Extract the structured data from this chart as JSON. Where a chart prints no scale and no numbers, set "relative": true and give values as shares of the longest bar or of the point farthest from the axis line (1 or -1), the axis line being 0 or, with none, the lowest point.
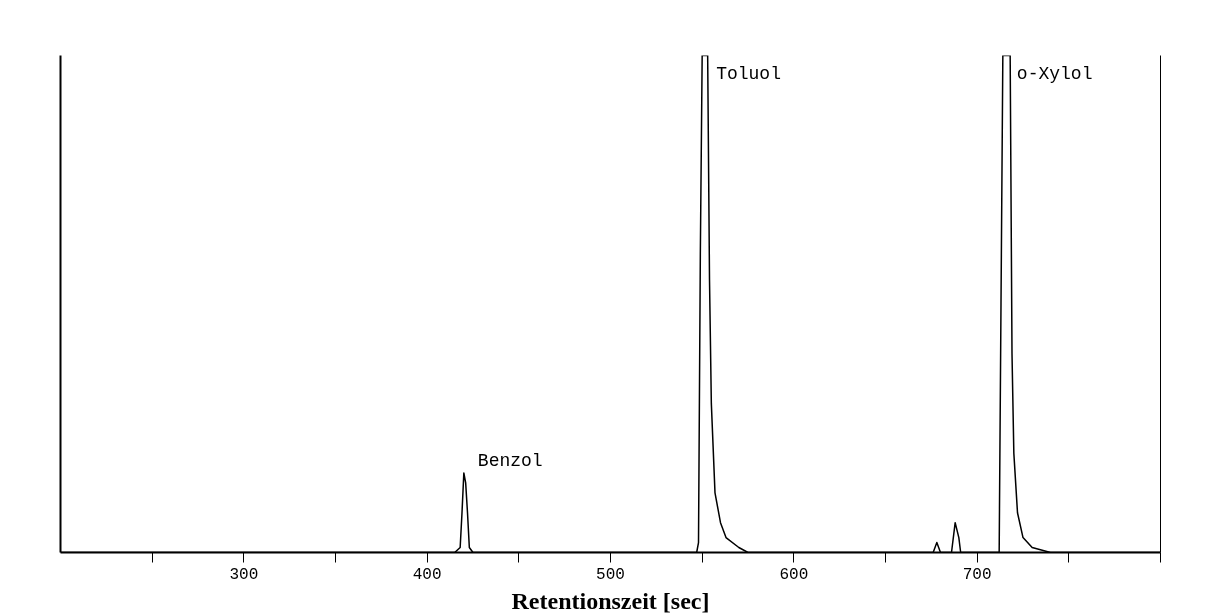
{
  "chart_data": {
    "type": "line",
    "relative": true,
    "xlabel": "Retentionszeit [sec]",
    "xlim": [
      200,
      800
    ],
    "xticks": [
      {
        "value": 250,
        "label": null
      },
      300,
      {
        "value": 350,
        "label": null
      },
      400,
      {
        "value": 450,
        "label": null
      },
      500,
      {
        "value": 550,
        "label": null
      },
      600,
      {
        "value": 650,
        "label": null
      },
      700,
      {
        "value": 750,
        "label": null
      },
      {
        "value": 800,
        "label": null
      }
    ],
    "x": [
      200,
      415,
      418,
      419,
      420,
      421,
      422,
      423,
      425,
      547,
      548,
      549,
      550,
      553,
      554,
      555,
      557,
      560,
      563,
      570,
      575,
      676,
      678,
      680,
      686,
      688,
      690,
      691,
      712,
      713,
      714,
      718,
      719,
      720,
      722,
      725,
      730,
      740,
      800
    ],
    "values": [
      0,
      0,
      0.01,
      0.08,
      0.16,
      0.14,
      0.08,
      0.01,
      0,
      0,
      0.02,
      0.6,
      1,
      1,
      0.55,
      0.3,
      0.12,
      0.06,
      0.03,
      0.01,
      0,
      0,
      0.02,
      0,
      0,
      0.06,
      0.03,
      0,
      0,
      0.5,
      1,
      1,
      0.4,
      0.2,
      0.08,
      0.03,
      0.01,
      0,
      0
    ],
    "color": "#000000",
    "grid": false,
    "marker": "none",
    "line_style": "solid",
    "annotations": [
      {
        "text": "Benzol",
        "x": 420,
        "y": 0.16
      },
      {
        "text": "Toluol",
        "x": 550,
        "y": 1
      },
      {
        "text": "o-Xylol",
        "x": 714,
        "y": 1
      }
    ]
  }
}
